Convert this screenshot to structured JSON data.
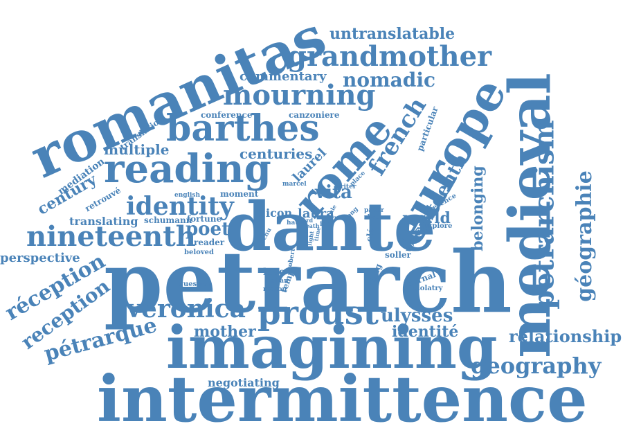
{
  "color": "#4a83b8",
  "words": [
    {
      "text": "petrarch",
      "icon": null
    },
    {
      "text": "intermittence"
    },
    {
      "text": "imagining"
    },
    {
      "text": "dante"
    },
    {
      "text": "romanitas"
    },
    {
      "text": "medieval"
    },
    {
      "text": "europe"
    },
    {
      "text": "rome"
    },
    {
      "text": "reading"
    },
    {
      "text": "barthes"
    },
    {
      "text": "grandmother"
    },
    {
      "text": "mourning"
    },
    {
      "text": "proust"
    },
    {
      "text": "nineteenth"
    },
    {
      "text": "petrarchism"
    },
    {
      "text": "géographie"
    },
    {
      "text": "geography"
    },
    {
      "text": "identity"
    },
    {
      "text": "veronica"
    },
    {
      "text": "ulysses"
    },
    {
      "text": "nomadic"
    },
    {
      "text": "untranslatable"
    },
    {
      "text": "french"
    },
    {
      "text": "réception"
    },
    {
      "text": "reception"
    },
    {
      "text": "pétrarque"
    },
    {
      "text": "relationship"
    },
    {
      "text": "mother"
    },
    {
      "text": "identité"
    },
    {
      "text": "sixteenth"
    },
    {
      "text": "belonging"
    },
    {
      "text": "commentary"
    },
    {
      "text": "vita"
    },
    {
      "text": "world"
    },
    {
      "text": "poet"
    },
    {
      "text": "century"
    },
    {
      "text": "multiple"
    },
    {
      "text": "centuries"
    },
    {
      "text": "laurel"
    },
    {
      "text": "laura"
    },
    {
      "text": "negotiating"
    },
    {
      "text": "perspective"
    },
    {
      "text": "translating"
    },
    {
      "text": "mediation"
    },
    {
      "text": "translation"
    },
    {
      "text": "retrouvé"
    },
    {
      "text": "conference"
    },
    {
      "text": "canzoniere"
    },
    {
      "text": "particular"
    },
    {
      "text": "schumann"
    },
    {
      "text": "fortune"
    },
    {
      "text": "moment"
    },
    {
      "text": "icon"
    },
    {
      "text": "mot"
    },
    {
      "text": "love"
    },
    {
      "text": "temp"
    },
    {
      "text": "reader"
    },
    {
      "text": "beloved"
    },
    {
      "text": "question"
    },
    {
      "text": "journal"
    },
    {
      "text": "idolatry"
    },
    {
      "text": "writing"
    },
    {
      "text": "soller"
    },
    {
      "text": "clés"
    },
    {
      "text": "volume"
    },
    {
      "text": "explore"
    },
    {
      "text": "presence"
    },
    {
      "text": "paper"
    },
    {
      "text": "rhythm"
    },
    {
      "text": "song"
    },
    {
      "text": "writer"
    },
    {
      "text": "place"
    },
    {
      "text": "marcel"
    },
    {
      "text": "idol"
    },
    {
      "text": "english"
    },
    {
      "text": "italian"
    },
    {
      "text": "reason"
    },
    {
      "text": "robert"
    },
    {
      "text": "haunt"
    },
    {
      "text": "schu"
    },
    {
      "text": "word"
    },
    {
      "text": "death"
    },
    {
      "text": "time"
    },
    {
      "text": "light"
    },
    {
      "text": "rule"
    },
    {
      "text": "term"
    }
  ]
}
